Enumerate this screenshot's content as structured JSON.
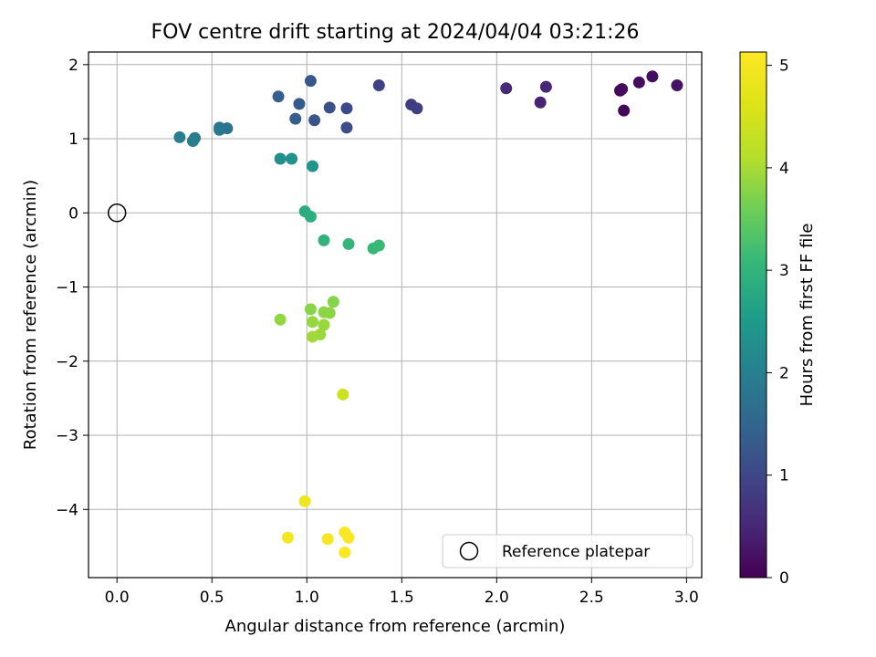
{
  "chart_data": {
    "type": "scatter",
    "title": "FOV centre drift starting at 2024/04/04 03:21:26",
    "xlabel": "Angular distance from reference (arcmin)",
    "ylabel": "Rotation from reference (arcmin)",
    "xlim": [
      -0.15,
      3.08
    ],
    "ylim": [
      -4.92,
      2.17
    ],
    "xticks": [
      0.0,
      0.5,
      1.0,
      1.5,
      2.0,
      2.5,
      3.0
    ],
    "xtick_labels": [
      "0.0",
      "0.5",
      "1.0",
      "1.5",
      "2.0",
      "2.5",
      "3.0"
    ],
    "yticks": [
      -4,
      -3,
      -2,
      -1,
      0,
      1,
      2
    ],
    "ytick_labels": [
      "−4",
      "−3",
      "−2",
      "−1",
      "0",
      "1",
      "2"
    ],
    "grid": true,
    "colorbar": {
      "label": "Hours from first FF file",
      "colormap": "viridis",
      "range": [
        0,
        5.13
      ],
      "ticks": [
        0,
        1,
        2,
        3,
        4,
        5
      ],
      "tick_labels": [
        "0",
        "1",
        "2",
        "3",
        "4",
        "5"
      ]
    },
    "legend": {
      "placement": "lower-right",
      "entries": [
        "Reference platepar"
      ]
    },
    "reference_point": {
      "x": 0.0,
      "y": 0.0
    },
    "points": [
      {
        "x": 2.67,
        "y": 1.38,
        "c": 0.05
      },
      {
        "x": 2.65,
        "y": 1.65,
        "c": 0.08
      },
      {
        "x": 2.66,
        "y": 1.67,
        "c": 0.12
      },
      {
        "x": 2.75,
        "y": 1.76,
        "c": 0.15
      },
      {
        "x": 2.82,
        "y": 1.84,
        "c": 0.18
      },
      {
        "x": 2.95,
        "y": 1.72,
        "c": 0.22
      },
      {
        "x": 2.23,
        "y": 1.49,
        "c": 0.45
      },
      {
        "x": 2.26,
        "y": 1.7,
        "c": 0.5
      },
      {
        "x": 2.05,
        "y": 1.68,
        "c": 0.55
      },
      {
        "x": 1.55,
        "y": 1.46,
        "c": 0.8
      },
      {
        "x": 1.58,
        "y": 1.41,
        "c": 0.85
      },
      {
        "x": 1.38,
        "y": 1.72,
        "c": 0.9
      },
      {
        "x": 1.21,
        "y": 1.41,
        "c": 1.05
      },
      {
        "x": 1.21,
        "y": 1.15,
        "c": 1.1
      },
      {
        "x": 1.12,
        "y": 1.42,
        "c": 1.15
      },
      {
        "x": 1.04,
        "y": 1.25,
        "c": 1.2
      },
      {
        "x": 1.02,
        "y": 1.78,
        "c": 1.25
      },
      {
        "x": 0.96,
        "y": 1.47,
        "c": 1.3
      },
      {
        "x": 0.94,
        "y": 1.27,
        "c": 1.35
      },
      {
        "x": 0.85,
        "y": 1.57,
        "c": 1.4
      },
      {
        "x": 0.58,
        "y": 1.14,
        "c": 1.75
      },
      {
        "x": 0.54,
        "y": 1.15,
        "c": 1.8
      },
      {
        "x": 0.54,
        "y": 1.12,
        "c": 1.85
      },
      {
        "x": 0.41,
        "y": 1.01,
        "c": 1.9
      },
      {
        "x": 0.4,
        "y": 0.97,
        "c": 1.95
      },
      {
        "x": 0.33,
        "y": 1.02,
        "c": 2.0
      },
      {
        "x": 0.86,
        "y": 0.73,
        "c": 2.3
      },
      {
        "x": 0.92,
        "y": 0.73,
        "c": 2.35
      },
      {
        "x": 1.03,
        "y": 0.63,
        "c": 2.4
      },
      {
        "x": 0.99,
        "y": 0.02,
        "c": 2.85
      },
      {
        "x": 1.02,
        "y": -0.05,
        "c": 2.9
      },
      {
        "x": 1.09,
        "y": -0.37,
        "c": 3.0
      },
      {
        "x": 1.22,
        "y": -0.42,
        "c": 3.05
      },
      {
        "x": 1.35,
        "y": -0.48,
        "c": 3.1
      },
      {
        "x": 1.38,
        "y": -0.44,
        "c": 3.12
      },
      {
        "x": 1.14,
        "y": -1.2,
        "c": 3.75
      },
      {
        "x": 1.02,
        "y": -1.3,
        "c": 3.78
      },
      {
        "x": 1.09,
        "y": -1.34,
        "c": 3.8
      },
      {
        "x": 1.12,
        "y": -1.35,
        "c": 3.82
      },
      {
        "x": 0.86,
        "y": -1.44,
        "c": 3.85
      },
      {
        "x": 1.03,
        "y": -1.47,
        "c": 3.88
      },
      {
        "x": 1.09,
        "y": -1.51,
        "c": 3.9
      },
      {
        "x": 1.07,
        "y": -1.64,
        "c": 3.92
      },
      {
        "x": 1.03,
        "y": -1.67,
        "c": 3.95
      },
      {
        "x": 1.19,
        "y": -2.45,
        "c": 4.4
      },
      {
        "x": 0.99,
        "y": -3.89,
        "c": 4.9
      },
      {
        "x": 0.9,
        "y": -4.38,
        "c": 5.0
      },
      {
        "x": 1.11,
        "y": -4.4,
        "c": 5.05
      },
      {
        "x": 1.2,
        "y": -4.31,
        "c": 5.08
      },
      {
        "x": 1.22,
        "y": -4.38,
        "c": 5.1
      },
      {
        "x": 1.2,
        "y": -4.58,
        "c": 5.13
      }
    ]
  }
}
